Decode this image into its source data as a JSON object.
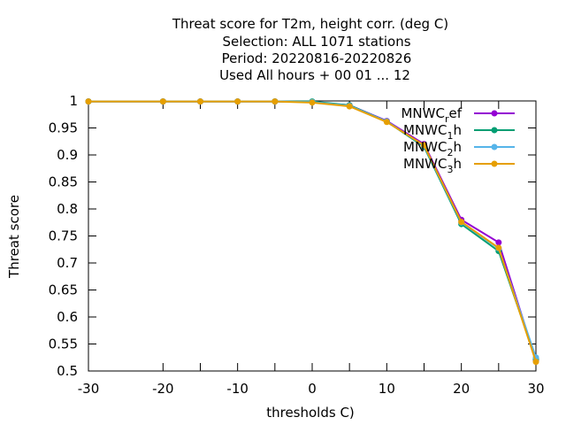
{
  "chart_data": {
    "type": "line",
    "title_lines": [
      "Threat score  for T2m, height corr. (deg C)",
      "Selection: ALL   1071 stations",
      "Period: 20220816-20220826",
      "Used  All hours  + 00 01 ... 12"
    ],
    "xlabel": "thresholds C)",
    "ylabel": "Threat score",
    "xlim": [
      -30,
      30
    ],
    "ylim": [
      0.5,
      1.0
    ],
    "xticks": [
      -30,
      -20,
      -10,
      0,
      10,
      20,
      30
    ],
    "xtick_labels": [
      "-30",
      "-20",
      "-10",
      "0",
      "10",
      "20",
      "30"
    ],
    "yticks": [
      0.5,
      0.55,
      0.6,
      0.65,
      0.7,
      0.75,
      0.8,
      0.85,
      0.9,
      0.95,
      1.0
    ],
    "ytick_labels": [
      "0.5",
      "0.55",
      "0.6",
      "0.65",
      "0.7",
      "0.75",
      "0.8",
      "0.85",
      "0.9",
      "0.95",
      "1"
    ],
    "grid": false,
    "legend_position": "top-right",
    "x": [
      -30,
      -20,
      -15,
      -10,
      -5,
      0,
      5,
      10,
      15,
      20,
      25,
      30
    ],
    "series": [
      {
        "name": "MNWC_ref",
        "legend_parts": [
          "MNWC",
          "r",
          "ef"
        ],
        "color": "#9400d3",
        "values": [
          0.999,
          0.999,
          0.999,
          0.999,
          0.999,
          0.998,
          0.992,
          0.963,
          0.92,
          0.78,
          0.738,
          0.52
        ]
      },
      {
        "name": "MNWC_1h",
        "legend_parts": [
          "MNWC",
          "1",
          "h"
        ],
        "color": "#009e73",
        "values": [
          0.999,
          0.999,
          0.999,
          0.999,
          0.999,
          0.999,
          0.992,
          0.962,
          0.915,
          0.772,
          0.722,
          0.522
        ]
      },
      {
        "name": "MNWC_2h",
        "legend_parts": [
          "MNWC",
          "2",
          "h"
        ],
        "color": "#56b4e9",
        "values": [
          0.999,
          0.999,
          0.999,
          0.999,
          0.999,
          0.998,
          0.991,
          0.962,
          0.917,
          0.775,
          0.727,
          0.525
        ]
      },
      {
        "name": "MNWC_3h",
        "legend_parts": [
          "MNWC",
          "3",
          "h"
        ],
        "color": "#e69f00",
        "values": [
          0.999,
          0.999,
          0.999,
          0.999,
          0.999,
          0.997,
          0.99,
          0.961,
          0.918,
          0.776,
          0.728,
          0.517
        ]
      }
    ]
  }
}
